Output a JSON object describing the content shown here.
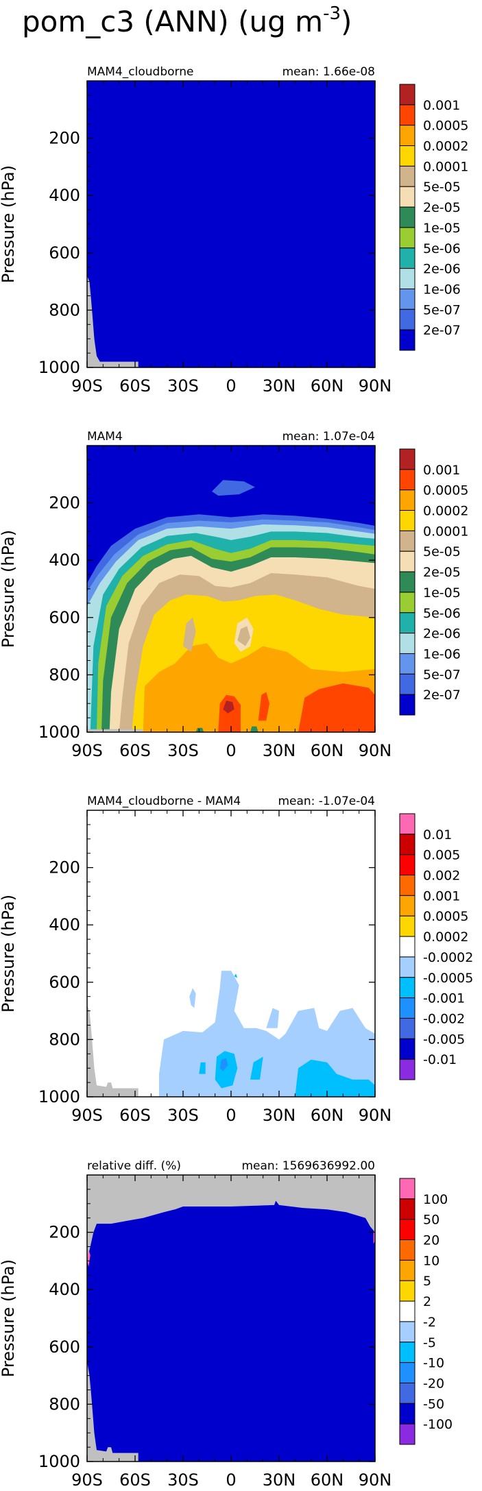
{
  "figure": {
    "title": "pom_c3 (ANN) (ug m",
    "title_exponent": "-3",
    "title_close": ")"
  },
  "chart_data": [
    {
      "type": "heatmap",
      "title_left": "MAM4_cloudborne",
      "title_right": "mean: 1.66e-08",
      "ylabel": "Pressure (hPa)",
      "xlabel": "",
      "x_ticks": [
        "90S",
        "60S",
        "30S",
        "0",
        "30N",
        "60N",
        "90N"
      ],
      "y_ticks": [
        "200",
        "400",
        "600",
        "800",
        "1000"
      ],
      "xlim": [
        -90,
        90
      ],
      "ylim": [
        1000,
        0
      ],
      "colorbar_labels": [
        "0.001",
        "0.0005",
        "0.0002",
        "0.0001",
        "5e-05",
        "2e-05",
        "1e-05",
        "5e-06",
        "2e-06",
        "1e-06",
        "5e-07",
        "2e-07"
      ],
      "colorbar_colors": [
        "#b22222",
        "#ff4500",
        "#ffa500",
        "#ffd700",
        "#d2b48c",
        "#f5deb3",
        "#2e8b57",
        "#9acd32",
        "#20b2aa",
        "#b0e0e6",
        "#6495ed",
        "#4169e1",
        "#0000cd"
      ],
      "background_color": "#0000cd",
      "missing_color": "#c0c0c0",
      "description": "uniform minimum level everywhere"
    },
    {
      "type": "heatmap",
      "title_left": "MAM4",
      "title_right": "mean: 1.07e-04",
      "ylabel": "Pressure (hPa)",
      "xlabel": "",
      "x_ticks": [
        "90S",
        "60S",
        "30S",
        "0",
        "30N",
        "60N",
        "90N"
      ],
      "y_ticks": [
        "200",
        "400",
        "600",
        "800",
        "1000"
      ],
      "xlim": [
        -90,
        90
      ],
      "ylim": [
        1000,
        0
      ],
      "colorbar_labels": [
        "0.001",
        "0.0005",
        "0.0002",
        "0.0001",
        "5e-05",
        "2e-05",
        "1e-05",
        "5e-06",
        "2e-06",
        "1e-06",
        "5e-07",
        "2e-07"
      ],
      "colorbar_colors": [
        "#b22222",
        "#ff4500",
        "#ffa500",
        "#ffd700",
        "#d2b48c",
        "#f5deb3",
        "#2e8b57",
        "#9acd32",
        "#20b2aa",
        "#b0e0e6",
        "#6495ed",
        "#4169e1",
        "#0000cd"
      ],
      "background_color": "#0000cd",
      "missing_color": "#c0c0c0"
    },
    {
      "type": "heatmap",
      "title_left": "MAM4_cloudborne - MAM4",
      "title_right": "mean: -1.07e-04",
      "ylabel": "Pressure (hPa)",
      "xlabel": "",
      "x_ticks": [
        "90S",
        "60S",
        "30S",
        "0",
        "30N",
        "60N",
        "90N"
      ],
      "y_ticks": [
        "200",
        "400",
        "600",
        "800",
        "1000"
      ],
      "xlim": [
        -90,
        90
      ],
      "ylim": [
        1000,
        0
      ],
      "colorbar_labels": [
        "0.01",
        "0.005",
        "0.002",
        "0.001",
        "0.0005",
        "0.0002",
        "-0.0002",
        "-0.0005",
        "-0.001",
        "-0.002",
        "-0.005",
        "-0.01"
      ],
      "colorbar_colors": [
        "#ff69b4",
        "#cc0000",
        "#ff0000",
        "#ff6a00",
        "#ffa500",
        "#ffd700",
        "#ffffff",
        "#a4cfff",
        "#00bfff",
        "#1e90ff",
        "#4169e1",
        "#0000cd",
        "#8a2be2"
      ],
      "background_color": "#ffffff",
      "missing_color": "#c0c0c0"
    },
    {
      "type": "heatmap",
      "title_left": "relative diff. (%)",
      "title_right": "mean: 1569636992.00",
      "ylabel": "Pressure (hPa)",
      "xlabel": "",
      "x_ticks": [
        "90S",
        "60S",
        "30S",
        "0",
        "30N",
        "60N",
        "90N"
      ],
      "y_ticks": [
        "200",
        "400",
        "600",
        "800",
        "1000"
      ],
      "xlim": [
        -90,
        90
      ],
      "ylim": [
        1000,
        0
      ],
      "colorbar_labels": [
        "100",
        "50",
        "20",
        "10",
        "5",
        "2",
        "-2",
        "-5",
        "-10",
        "-20",
        "-50",
        "-100"
      ],
      "colorbar_colors": [
        "#ff69b4",
        "#cc0000",
        "#ff0000",
        "#ff6a00",
        "#ffa500",
        "#ffd700",
        "#ffffff",
        "#a4cfff",
        "#00bfff",
        "#1e90ff",
        "#4169e1",
        "#0000cd",
        "#8a2be2"
      ],
      "background_color": "#0000cd",
      "missing_color": "#c0c0c0"
    }
  ]
}
